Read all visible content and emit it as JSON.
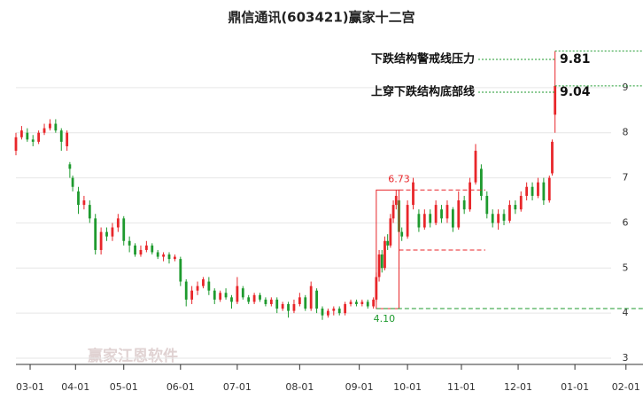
{
  "chart_data": {
    "type": "candlestick",
    "title": "鼎信通讯(603421)赢家十二宫",
    "x": [
      0,
      2,
      4,
      6,
      8,
      10,
      12,
      14,
      16,
      18,
      19,
      20,
      22,
      24,
      26,
      28,
      30,
      32,
      34,
      36,
      38,
      40,
      42,
      44,
      46,
      48,
      50,
      52,
      54,
      56,
      58,
      60,
      62,
      64,
      66,
      68,
      70,
      72,
      74,
      76,
      78,
      80,
      82,
      84,
      86,
      88,
      90,
      92,
      94,
      96,
      98,
      100,
      102,
      104,
      106,
      108,
      110,
      112,
      114,
      116,
      118,
      120,
      122,
      124,
      126,
      127,
      128,
      129,
      130,
      131,
      132,
      133,
      134,
      135,
      136,
      138,
      140,
      142,
      144,
      146,
      148,
      150,
      152,
      154,
      156,
      158,
      160,
      162,
      164,
      166,
      168,
      170,
      172,
      174,
      176,
      178,
      180,
      182,
      184,
      186,
      188,
      189,
      190
    ],
    "open": [
      7.6,
      7.9,
      8.0,
      7.85,
      7.8,
      8.0,
      8.1,
      8.2,
      8.05,
      7.7,
      7.3,
      7.0,
      6.7,
      6.4,
      6.4,
      6.1,
      5.4,
      5.8,
      5.7,
      5.9,
      6.1,
      5.6,
      5.5,
      5.3,
      5.4,
      5.5,
      5.35,
      5.25,
      5.3,
      5.2,
      5.2,
      4.7,
      4.3,
      4.5,
      4.6,
      4.7,
      4.5,
      4.3,
      4.45,
      4.35,
      4.25,
      4.55,
      4.35,
      4.25,
      4.4,
      4.3,
      4.2,
      4.3,
      4.1,
      4.2,
      4.05,
      4.2,
      4.35,
      4.1,
      4.5,
      4.1,
      3.95,
      4.05,
      4.1,
      4.0,
      4.2,
      4.25,
      4.2,
      4.25,
      4.15,
      4.3,
      4.8,
      5.3,
      5.0,
      5.6,
      5.5,
      6.1,
      6.4,
      6.5,
      5.8,
      5.7,
      6.4,
      6.2,
      5.9,
      6.2,
      6.0,
      6.3,
      6.1,
      6.3,
      5.9,
      6.5,
      6.3,
      6.9,
      7.2,
      6.6,
      6.2,
      6.0,
      6.2,
      6.05,
      6.4,
      6.3,
      6.6,
      6.8,
      6.6,
      6.9,
      6.5,
      7.1,
      8.4
    ],
    "close": [
      7.9,
      8.05,
      7.85,
      7.8,
      8.0,
      8.1,
      8.2,
      8.05,
      7.8,
      8.0,
      7.2,
      6.8,
      6.4,
      6.5,
      6.1,
      5.4,
      5.8,
      5.7,
      5.9,
      6.1,
      5.6,
      5.5,
      5.3,
      5.4,
      5.5,
      5.35,
      5.25,
      5.3,
      5.2,
      5.25,
      4.7,
      4.3,
      4.5,
      4.6,
      4.75,
      4.5,
      4.3,
      4.45,
      4.35,
      4.25,
      4.6,
      4.35,
      4.25,
      4.4,
      4.3,
      4.2,
      4.3,
      4.1,
      4.2,
      4.05,
      4.2,
      4.35,
      4.1,
      4.6,
      4.1,
      3.95,
      4.05,
      4.1,
      4.0,
      4.2,
      4.25,
      4.2,
      4.25,
      4.15,
      4.3,
      4.8,
      5.3,
      5.0,
      5.6,
      5.5,
      6.1,
      6.4,
      6.6,
      5.8,
      5.7,
      6.4,
      6.9,
      5.9,
      6.2,
      6.0,
      6.4,
      6.1,
      6.4,
      5.9,
      6.5,
      6.3,
      6.9,
      7.6,
      6.6,
      6.2,
      6.0,
      6.2,
      6.05,
      6.4,
      6.3,
      6.6,
      6.8,
      6.6,
      6.9,
      6.5,
      7.0,
      7.8,
      9.04
    ],
    "high": [
      8.0,
      8.15,
      8.1,
      7.95,
      8.05,
      8.2,
      8.3,
      8.3,
      8.1,
      8.05,
      7.35,
      7.05,
      6.8,
      6.6,
      6.5,
      6.2,
      5.9,
      5.9,
      6.0,
      6.2,
      6.15,
      5.7,
      5.55,
      5.5,
      5.6,
      5.55,
      5.4,
      5.35,
      5.35,
      5.3,
      5.25,
      4.75,
      4.6,
      4.7,
      4.8,
      4.8,
      4.55,
      4.5,
      4.55,
      4.4,
      4.8,
      4.6,
      4.4,
      4.45,
      4.45,
      4.35,
      4.35,
      4.35,
      4.25,
      4.25,
      4.3,
      4.45,
      4.4,
      4.7,
      4.55,
      4.15,
      4.1,
      4.15,
      4.15,
      4.25,
      4.3,
      4.3,
      4.3,
      4.3,
      4.35,
      4.9,
      5.4,
      5.4,
      5.7,
      5.75,
      6.2,
      6.5,
      6.73,
      6.55,
      5.9,
      6.5,
      7.0,
      6.3,
      6.3,
      6.3,
      6.5,
      6.4,
      6.5,
      6.35,
      6.7,
      6.6,
      7.0,
      7.75,
      7.3,
      6.7,
      6.3,
      6.3,
      6.3,
      6.5,
      6.5,
      6.7,
      6.9,
      6.9,
      7.0,
      7.0,
      7.05,
      7.85,
      9.81
    ],
    "low": [
      7.5,
      7.85,
      7.8,
      7.7,
      7.75,
      7.95,
      8.05,
      8.0,
      7.6,
      7.6,
      7.0,
      6.7,
      6.2,
      6.3,
      6.0,
      5.3,
      5.3,
      5.6,
      5.6,
      5.8,
      5.5,
      5.35,
      5.25,
      5.25,
      5.35,
      5.3,
      5.2,
      5.15,
      5.1,
      5.15,
      4.6,
      4.15,
      4.2,
      4.4,
      4.55,
      4.4,
      4.2,
      4.25,
      4.3,
      4.1,
      4.2,
      4.3,
      4.2,
      4.2,
      4.25,
      4.15,
      4.15,
      4.0,
      4.05,
      3.9,
      4.0,
      4.15,
      4.05,
      4.05,
      4.0,
      3.85,
      3.9,
      3.95,
      3.95,
      3.95,
      4.15,
      4.15,
      4.15,
      4.1,
      4.1,
      4.25,
      4.7,
      4.9,
      4.95,
      5.4,
      5.45,
      6.0,
      6.3,
      5.7,
      5.6,
      5.65,
      6.3,
      5.8,
      5.85,
      5.9,
      5.95,
      6.0,
      6.0,
      5.8,
      5.85,
      6.2,
      6.25,
      6.85,
      6.5,
      6.1,
      5.9,
      5.85,
      5.95,
      6.0,
      6.2,
      6.25,
      6.5,
      6.5,
      6.55,
      6.4,
      6.45,
      7.05,
      8.0
    ],
    "up_color": "#e8262a",
    "down_color": "#1e9a2e",
    "xlim": [
      0,
      221
    ],
    "xticks": [
      {
        "value": 5,
        "label": "03-01"
      },
      {
        "value": 21,
        "label": "04-01"
      },
      {
        "value": 38,
        "label": "05-01"
      },
      {
        "value": 58,
        "label": "06-01"
      },
      {
        "value": 78,
        "label": "07-01"
      },
      {
        "value": 100,
        "label": "08-01"
      },
      {
        "value": 121,
        "label": "09-01"
      },
      {
        "value": 138,
        "label": "10-01"
      },
      {
        "value": 157,
        "label": "11-01"
      },
      {
        "value": 177,
        "label": "12-01"
      },
      {
        "value": 197,
        "label": "01-01"
      },
      {
        "value": 215,
        "label": "02-01"
      }
    ],
    "ylim": [
      3,
      10
    ],
    "yticks": [
      3,
      4,
      5,
      6,
      7,
      8,
      9
    ],
    "grid": true,
    "box": {
      "x": [
        127,
        135
      ],
      "top": 6.73,
      "bottom": {
        "value": 4.1,
        "label": "4.10"
      },
      "mid": 5.4
    },
    "signals": [
      {
        "text": "下跌结构警戒线压力",
        "value": 9.81
      },
      {
        "text": "上穿下跌结构底部线",
        "value": 9.04
      }
    ],
    "watermark": "赢家江恩软件"
  }
}
